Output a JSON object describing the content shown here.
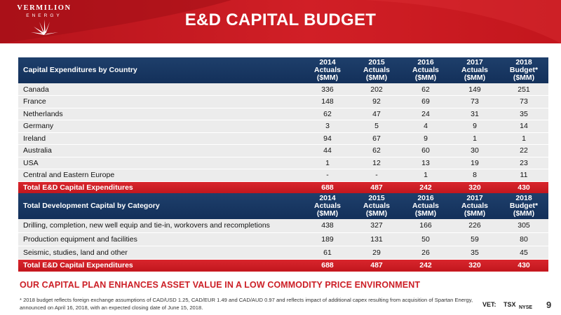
{
  "header": {
    "logo_word": "VERMILION",
    "logo_sub": "ENERGY",
    "title": "E&D CAPITAL BUDGET"
  },
  "columns": [
    {
      "line1": "2014 Actuals",
      "line2": "($MM)"
    },
    {
      "line1": "2015 Actuals",
      "line2": "($MM)"
    },
    {
      "line1": "2016 Actuals",
      "line2": "($MM)"
    },
    {
      "line1": "2017 Actuals",
      "line2": "($MM)"
    },
    {
      "line1": "2018 Budget*",
      "line2": "($MM)"
    }
  ],
  "table_country": {
    "heading": "Capital Expenditures by Country",
    "rows": [
      {
        "label": "Canada",
        "values": [
          "336",
          "202",
          "62",
          "149",
          "251"
        ]
      },
      {
        "label": "France",
        "values": [
          "148",
          "92",
          "69",
          "73",
          "73"
        ]
      },
      {
        "label": "Netherlands",
        "values": [
          "62",
          "47",
          "24",
          "31",
          "35"
        ]
      },
      {
        "label": "Germany",
        "values": [
          "3",
          "5",
          "4",
          "9",
          "14"
        ]
      },
      {
        "label": "Ireland",
        "values": [
          "94",
          "67",
          "9",
          "1",
          "1"
        ]
      },
      {
        "label": "Australia",
        "values": [
          "44",
          "62",
          "60",
          "30",
          "22"
        ]
      },
      {
        "label": "USA",
        "values": [
          "1",
          "12",
          "13",
          "19",
          "23"
        ]
      },
      {
        "label": "Central and Eastern Europe",
        "values": [
          "-",
          "-",
          "1",
          "8",
          "11"
        ]
      }
    ],
    "total": {
      "label": "Total E&D Capital Expenditures",
      "values": [
        "688",
        "487",
        "242",
        "320",
        "430"
      ]
    }
  },
  "table_category": {
    "heading": "Total Development Capital by Category",
    "rows": [
      {
        "label": "Drilling, completion, new well equip and tie-in, workovers and recompletions",
        "values": [
          "438",
          "327",
          "166",
          "226",
          "305"
        ]
      },
      {
        "label": "Production equipment and facilities",
        "values": [
          "189",
          "131",
          "50",
          "59",
          "80"
        ]
      },
      {
        "label": "Seismic, studies, land and other",
        "values": [
          "61",
          "29",
          "26",
          "35",
          "45"
        ]
      }
    ],
    "total": {
      "label": "Total E&D Capital Expenditures",
      "values": [
        "688",
        "487",
        "242",
        "320",
        "430"
      ]
    }
  },
  "tagline": "OUR CAPITAL PLAN ENHANCES ASSET VALUE IN A LOW COMMODITY PRICE ENVIRONMENT",
  "footnote": "* 2018 budget reflects foreign exchange assumptions of CAD/USD 1.25, CAD/EUR 1.49 and CAD/AUD 0.97 and reflects impact of additional capex resulting from acquisition of Spartan Energy, announced on April 16, 2018, with an expected closing date of June 15, 2018.",
  "tickers": {
    "vet": "VET:",
    "tsx": "TSX",
    "nyse": "NYSE"
  },
  "page_number": "9",
  "colors": {
    "brand_red": "#cc1f26",
    "header_blue": "#1a3a66",
    "row_gray": "#ececec"
  }
}
